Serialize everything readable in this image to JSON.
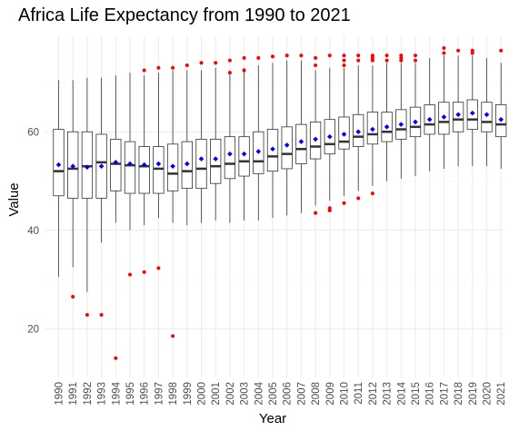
{
  "chart_data": {
    "type": "box",
    "title": "Africa Life Expectancy from 1990 to 2021",
    "xlabel": "Year",
    "ylabel": "Value",
    "ylim": [
      10,
      80
    ],
    "yticks": [
      20,
      40,
      60
    ],
    "grid": true,
    "categories": [
      "1990",
      "1991",
      "1992",
      "1993",
      "1994",
      "1995",
      "1996",
      "1997",
      "1998",
      "1999",
      "2000",
      "2001",
      "2002",
      "2003",
      "2004",
      "2005",
      "2006",
      "2007",
      "2008",
      "2009",
      "2010",
      "2011",
      "2012",
      "2013",
      "2014",
      "2015",
      "2016",
      "2017",
      "2018",
      "2019",
      "2020",
      "2021"
    ],
    "boxes": [
      {
        "min": 30.5,
        "q1": 47.0,
        "median": 52.0,
        "q3": 60.5,
        "max": 70.5,
        "mean": 53.3,
        "outliers": []
      },
      {
        "min": 32.5,
        "q1": 46.5,
        "median": 52.5,
        "q3": 60.0,
        "max": 70.5,
        "mean": 53.0,
        "outliers": [
          26.5
        ]
      },
      {
        "min": 27.5,
        "q1": 46.5,
        "median": 53.0,
        "q3": 60.0,
        "max": 71.0,
        "mean": 52.8,
        "outliers": [
          22.8
        ]
      },
      {
        "min": 37.5,
        "q1": 46.5,
        "median": 53.8,
        "q3": 59.5,
        "max": 71.0,
        "mean": 53.0,
        "outliers": [
          22.8
        ]
      },
      {
        "min": 41.5,
        "q1": 48.0,
        "median": 53.5,
        "q3": 58.5,
        "max": 71.5,
        "mean": 53.8,
        "outliers": [
          14.0
        ]
      },
      {
        "min": 40.0,
        "q1": 47.5,
        "median": 53.2,
        "q3": 58.0,
        "max": 72.0,
        "mean": 53.5,
        "outliers": [
          31.0
        ]
      },
      {
        "min": 41.0,
        "q1": 47.5,
        "median": 53.0,
        "q3": 57.0,
        "max": 71.5,
        "mean": 53.3,
        "outliers": [
          31.5,
          72.5
        ]
      },
      {
        "min": 42.5,
        "q1": 47.5,
        "median": 52.5,
        "q3": 57.0,
        "max": 72.0,
        "mean": 53.5,
        "outliers": [
          32.3,
          73.0
        ]
      },
      {
        "min": 41.5,
        "q1": 48.0,
        "median": 51.5,
        "q3": 57.5,
        "max": 72.5,
        "mean": 53.0,
        "outliers": [
          18.5,
          73.0
        ]
      },
      {
        "min": 41.0,
        "q1": 48.5,
        "median": 52.0,
        "q3": 58.0,
        "max": 72.5,
        "mean": 53.5,
        "outliers": [
          73.5
        ]
      },
      {
        "min": 41.5,
        "q1": 48.5,
        "median": 52.5,
        "q3": 58.5,
        "max": 72.5,
        "mean": 54.5,
        "outliers": [
          74.0
        ]
      },
      {
        "min": 42.0,
        "q1": 49.5,
        "median": 53.0,
        "q3": 58.5,
        "max": 73.0,
        "mean": 54.5,
        "outliers": [
          74.0
        ]
      },
      {
        "min": 41.5,
        "q1": 50.5,
        "median": 53.5,
        "q3": 59.0,
        "max": 72.5,
        "mean": 55.5,
        "outliers": [
          72.0,
          74.5
        ]
      },
      {
        "min": 42.0,
        "q1": 51.0,
        "median": 54.0,
        "q3": 59.0,
        "max": 73.0,
        "mean": 55.5,
        "outliers": [
          72.5,
          75.0
        ]
      },
      {
        "min": 42.0,
        "q1": 51.5,
        "median": 54.0,
        "q3": 60.0,
        "max": 73.5,
        "mean": 56.0,
        "outliers": [
          75.0
        ]
      },
      {
        "min": 42.5,
        "q1": 52.0,
        "median": 55.0,
        "q3": 60.5,
        "max": 74.0,
        "mean": 56.5,
        "outliers": [
          75.3
        ]
      },
      {
        "min": 43.0,
        "q1": 52.5,
        "median": 55.5,
        "q3": 61.0,
        "max": 74.5,
        "mean": 57.3,
        "outliers": [
          75.5
        ]
      },
      {
        "min": 43.5,
        "q1": 53.5,
        "median": 56.5,
        "q3": 61.5,
        "max": 74.5,
        "mean": 58.0,
        "outliers": [
          75.5
        ]
      },
      {
        "min": 45.0,
        "q1": 54.5,
        "median": 57.0,
        "q3": 62.0,
        "max": 72.5,
        "mean": 58.5,
        "outliers": [
          43.5,
          73.5,
          75.0
        ]
      },
      {
        "min": 46.0,
        "q1": 55.5,
        "median": 57.5,
        "q3": 62.5,
        "max": 73.0,
        "mean": 59.0,
        "outliers": [
          44.0,
          44.5,
          75.5
        ]
      },
      {
        "min": 47.0,
        "q1": 56.5,
        "median": 58.0,
        "q3": 63.0,
        "max": 73.0,
        "mean": 59.5,
        "outliers": [
          45.5,
          73.5,
          74.5,
          75.5
        ]
      },
      {
        "min": 48.0,
        "q1": 57.0,
        "median": 59.0,
        "q3": 63.5,
        "max": 73.5,
        "mean": 60.0,
        "outliers": [
          46.5,
          74.5,
          75.5
        ]
      },
      {
        "min": 49.0,
        "q1": 57.5,
        "median": 59.5,
        "q3": 64.0,
        "max": 73.5,
        "mean": 60.5,
        "outliers": [
          47.5,
          74.5,
          75.0,
          75.5
        ]
      },
      {
        "min": 50.0,
        "q1": 58.0,
        "median": 60.0,
        "q3": 64.0,
        "max": 74.0,
        "mean": 61.0,
        "outliers": [
          74.5,
          75.5
        ]
      },
      {
        "min": 50.5,
        "q1": 58.5,
        "median": 60.5,
        "q3": 64.5,
        "max": 74.0,
        "mean": 61.5,
        "outliers": [
          74.5,
          75.0,
          75.5
        ]
      },
      {
        "min": 51.0,
        "q1": 59.0,
        "median": 61.0,
        "q3": 65.0,
        "max": 74.0,
        "mean": 62.0,
        "outliers": [
          74.5,
          75.5
        ]
      },
      {
        "min": 52.0,
        "q1": 59.5,
        "median": 61.5,
        "q3": 65.5,
        "max": 75.0,
        "mean": 62.5,
        "outliers": []
      },
      {
        "min": 52.5,
        "q1": 59.5,
        "median": 62.0,
        "q3": 66.0,
        "max": 75.5,
        "mean": 63.0,
        "outliers": [
          76.0,
          77.0
        ]
      },
      {
        "min": 53.0,
        "q1": 60.0,
        "median": 62.5,
        "q3": 66.0,
        "max": 75.5,
        "mean": 63.5,
        "outliers": [
          76.5
        ]
      },
      {
        "min": 53.0,
        "q1": 60.5,
        "median": 62.5,
        "q3": 66.5,
        "max": 75.5,
        "mean": 63.8,
        "outliers": [
          76.0,
          76.5
        ]
      },
      {
        "min": 53.0,
        "q1": 60.0,
        "median": 62.0,
        "q3": 66.0,
        "max": 75.0,
        "mean": 63.5,
        "outliers": []
      },
      {
        "min": 52.5,
        "q1": 59.0,
        "median": 61.5,
        "q3": 65.5,
        "max": 74.0,
        "mean": 62.5,
        "outliers": [
          76.5
        ]
      }
    ],
    "colors": {
      "box_fill": "#ffffff",
      "box_stroke": "#333333",
      "median": "#333333",
      "mean": "#0000ff",
      "outlier": "#ff0000",
      "grid": "#ebebeb",
      "grid_minor": "#f4f4f4"
    }
  }
}
